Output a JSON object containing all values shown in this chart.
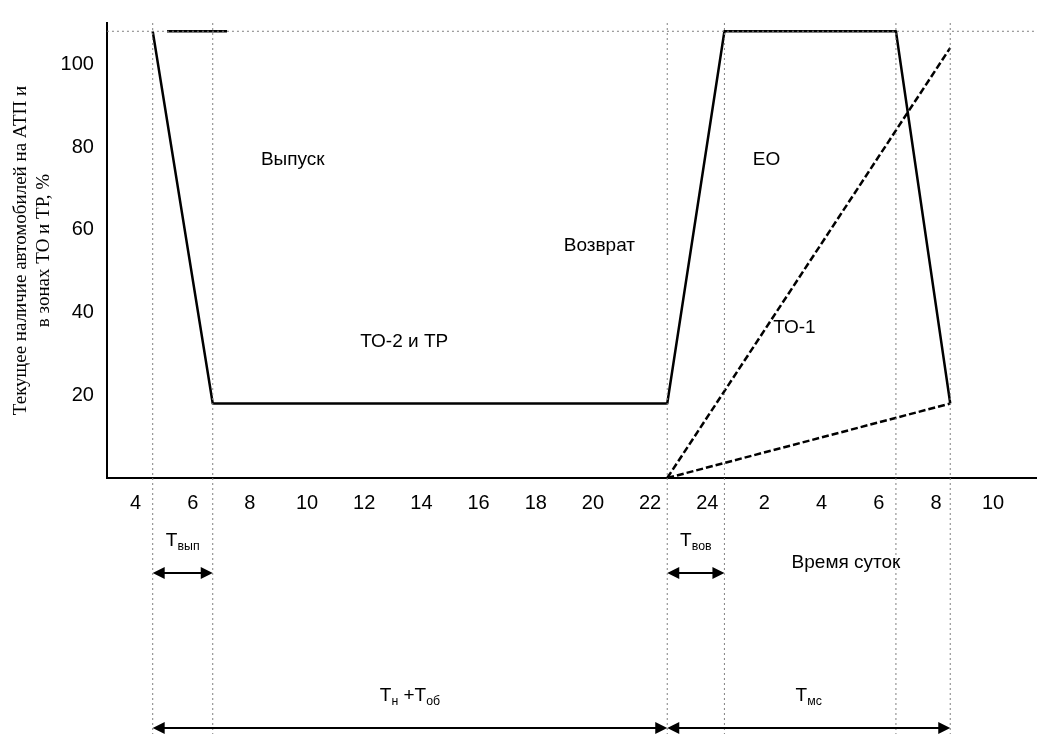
{
  "chart_data": {
    "type": "line",
    "xlabel": "Время суток",
    "ylabel": "Текущее наличие автомобилей на АТП и в зонах ТО и ТР, %",
    "xlim": [
      "--01-01T03:00",
      "--01-02T11:30"
    ],
    "xticks": [
      {
        "value": "--01-01T04:00",
        "label": "4"
      },
      {
        "value": "--01-01T06:00",
        "label": "6"
      },
      {
        "value": "--01-01T08:00",
        "label": "8"
      },
      {
        "value": "--01-01T10:00",
        "label": "10"
      },
      {
        "value": "--01-01T12:00",
        "label": "12"
      },
      {
        "value": "--01-01T14:00",
        "label": "14"
      },
      {
        "value": "--01-01T16:00",
        "label": "16"
      },
      {
        "value": "--01-01T18:00",
        "label": "18"
      },
      {
        "value": "--01-01T20:00",
        "label": "20"
      },
      {
        "value": "--01-01T22:00",
        "label": "22"
      },
      {
        "value": "--01-02T00:00",
        "label": "24"
      },
      {
        "value": "--01-02T02:00",
        "label": "2"
      },
      {
        "value": "--01-02T04:00",
        "label": "4"
      },
      {
        "value": "--01-02T06:00",
        "label": "6"
      },
      {
        "value": "--01-02T08:00",
        "label": "8"
      },
      {
        "value": "--01-02T10:00",
        "label": "10"
      }
    ],
    "ylim": [
      0,
      110
    ],
    "yticks": [
      20,
      40,
      60,
      80,
      100
    ],
    "grid": false,
    "legend": false,
    "marker": "none",
    "series": [
      {
        "color": "#000000",
        "x": [
          "--01-01T04:36",
          "--01-01T06:42",
          "--01-01T22:36",
          "--01-02T00:36",
          "--01-02T06:36",
          "--01-02T08:30"
        ],
        "values": [
          108,
          18,
          18,
          108,
          108,
          18
        ]
      },
      {
        "color": "#000000",
        "x": [
          "--01-01T05:06",
          "--01-01T07:12"
        ],
        "values": [
          108,
          108
        ]
      },
      {
        "color": "#000000",
        "x": [
          "--01-01T22:36",
          "--01-02T08:30"
        ],
        "values": [
          0,
          104
        ],
        "line_style": "dashed"
      },
      {
        "color": "#000000",
        "x": [
          "--01-01T22:36",
          "--01-02T08:30"
        ],
        "values": [
          0,
          18
        ],
        "line_style": "dashed"
      }
    ],
    "ref_lines": [
      {
        "axis": "y",
        "value": 108,
        "color": "#808080",
        "line_style": "dotted"
      },
      {
        "axis": "x",
        "value": "--01-01T04:36",
        "color": "#808080",
        "line_style": "dotted"
      },
      {
        "axis": "x",
        "value": "--01-01T06:42",
        "color": "#808080",
        "line_style": "dotted"
      },
      {
        "axis": "x",
        "value": "--01-01T22:36",
        "color": "#808080",
        "line_style": "dotted"
      },
      {
        "axis": "x",
        "value": "--01-02T00:36",
        "color": "#808080",
        "line_style": "dotted"
      },
      {
        "axis": "x",
        "value": "--01-02T06:36",
        "color": "#808080",
        "line_style": "dotted"
      },
      {
        "axis": "x",
        "value": "--01-02T08:30",
        "color": "#808080",
        "line_style": "dotted"
      }
    ],
    "annotations": [
      "Выпуск",
      "Возврат",
      "ЕО",
      "ТО-1",
      "ТО-2 и ТР",
      "Т$_{вып}$",
      "Т$_{вов}$",
      "Т$_{н}$ +Т$_{об}$",
      "Т$_{мс}$"
    ]
  }
}
